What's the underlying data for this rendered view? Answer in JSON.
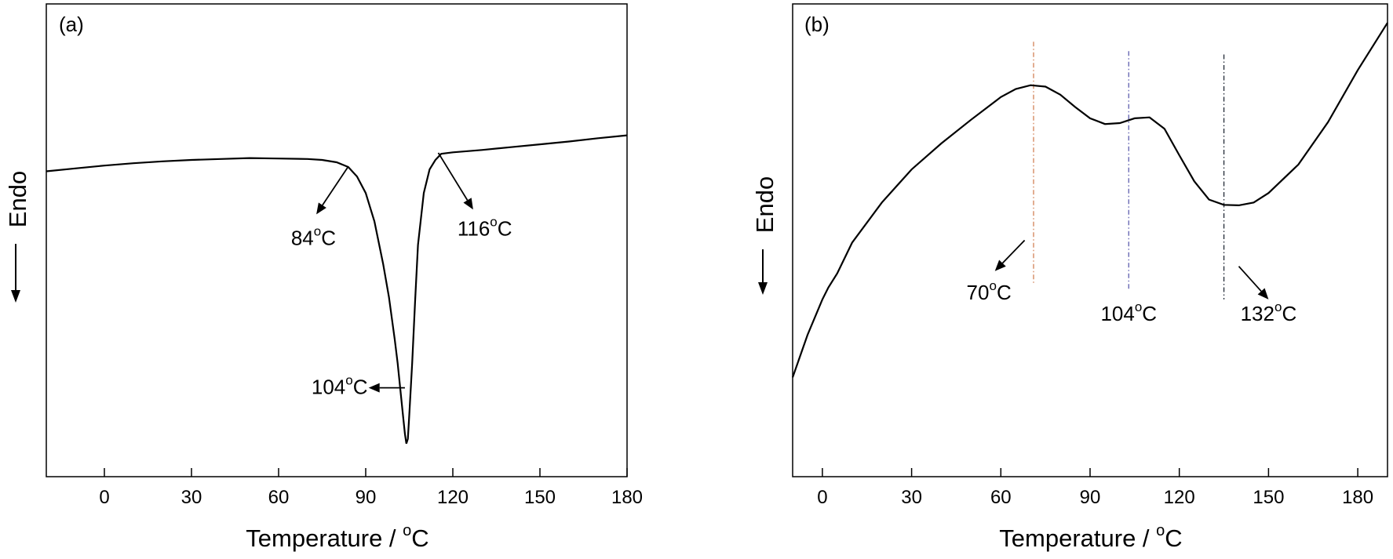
{
  "chart_data": [
    {
      "panel_label": "(a)",
      "type": "line",
      "xlabel": "Temperature / °C",
      "xlabel_text": "Temperature / ",
      "xlabel_sup": "o",
      "xlabel_unit": "C",
      "ylabel": "Endo",
      "xlim": [
        -20,
        180
      ],
      "ylim": [
        0,
        100
      ],
      "xticks": [
        "0",
        "30",
        "60",
        "90",
        "120",
        "150",
        "180"
      ],
      "xtick_values": [
        0,
        30,
        60,
        90,
        120,
        150,
        180
      ],
      "series": [
        {
          "x": [
            -20,
            -10,
            0,
            10,
            20,
            30,
            40,
            50,
            60,
            70,
            75,
            80,
            84,
            87,
            90,
            93,
            96,
            98,
            100,
            101,
            102,
            103,
            103.5,
            104,
            104.5,
            105,
            106,
            107,
            108,
            110,
            112,
            114,
            116,
            120,
            130,
            140,
            150,
            160,
            170,
            180
          ],
          "y": [
            64.6,
            65.2,
            65.8,
            66.3,
            66.7,
            67.0,
            67.2,
            67.4,
            67.3,
            67.2,
            67.0,
            66.5,
            65.5,
            63.5,
            60.0,
            54.0,
            45.0,
            38.0,
            29.0,
            24.0,
            18.0,
            12.0,
            9.0,
            7.0,
            8.0,
            13.0,
            24.0,
            37.0,
            49.0,
            60.0,
            65.0,
            67.0,
            68.3,
            68.6,
            69.1,
            69.7,
            70.3,
            70.9,
            71.6,
            72.2
          ]
        }
      ],
      "annotations": [
        {
          "value": "84",
          "sup": "o",
          "unit": "C",
          "point_x": 84,
          "point_y": 65.6,
          "arrow_to_x": 73,
          "arrow_to_y": 55.5,
          "label_x": 72,
          "label_y": 49
        },
        {
          "value": "116",
          "sup": "o",
          "unit": "C",
          "point_x": 115,
          "point_y": 68.5,
          "arrow_to_x": 127,
          "arrow_to_y": 56.5,
          "label_x": 131,
          "label_y": 51
        },
        {
          "value": "104",
          "sup": "o",
          "unit": "C",
          "point_x": 103.5,
          "point_y": 18.8,
          "arrow_to_x": 91,
          "arrow_to_y": 18.8,
          "label_x": 81,
          "label_y": 17.5
        }
      ]
    },
    {
      "panel_label": "(b)",
      "type": "line",
      "xlabel": "Temperature / °C",
      "xlabel_text": "Temperature / ",
      "xlabel_sup": "o",
      "xlabel_unit": "C",
      "ylabel": "Endo",
      "xlim": [
        -10,
        190
      ],
      "ylim": [
        0,
        100
      ],
      "xticks": [
        "0",
        "30",
        "60",
        "90",
        "120",
        "150",
        "180"
      ],
      "xtick_values": [
        0,
        30,
        60,
        90,
        120,
        150,
        180
      ],
      "series": [
        {
          "x": [
            -10,
            -5,
            0,
            2,
            5,
            10,
            20,
            30,
            40,
            50,
            60,
            65,
            70,
            75,
            80,
            85,
            90,
            95,
            100,
            105,
            110,
            115,
            120,
            125,
            130,
            135,
            140,
            145,
            150,
            160,
            170,
            180,
            190
          ],
          "y": [
            21.0,
            30.0,
            37.5,
            40.0,
            43.0,
            49.5,
            58.0,
            65.0,
            70.5,
            75.5,
            80.3,
            82.0,
            82.8,
            82.5,
            80.8,
            78.2,
            75.8,
            74.6,
            74.8,
            75.8,
            76.0,
            73.6,
            68.0,
            62.5,
            58.6,
            57.5,
            57.4,
            58.0,
            60.0,
            66.0,
            75.0,
            86.0,
            96.0
          ]
        }
      ],
      "vlines": [
        {
          "x": 71,
          "y_top": 92.0,
          "y_bottom": 41.0,
          "color": "#d58a62"
        },
        {
          "x": 103,
          "y_top": 90.0,
          "y_bottom": 39.5,
          "color": "#6a6ab4"
        },
        {
          "x": 135,
          "y_top": 89.3,
          "y_bottom": 37.5,
          "color": "#2d3440"
        }
      ],
      "annotations": [
        {
          "value": "70",
          "sup": "o",
          "unit": "C",
          "point_x": 68,
          "point_y": 50.0,
          "arrow_to_x": 58,
          "arrow_to_y": 43.5,
          "label_x": 56,
          "label_y": 37.5
        },
        {
          "value": "104",
          "sup": "o",
          "unit": "C",
          "point_x": null,
          "point_y": null,
          "arrow_to_x": null,
          "arrow_to_y": null,
          "label_x": 103,
          "label_y": 33.0
        },
        {
          "value": "132",
          "sup": "o",
          "unit": "C",
          "point_x": 140,
          "point_y": 44.5,
          "arrow_to_x": 150,
          "arrow_to_y": 37.5,
          "label_x": 150,
          "label_y": 33.0
        }
      ]
    }
  ],
  "colors": {
    "line": "#000000",
    "axis": "#000000"
  }
}
